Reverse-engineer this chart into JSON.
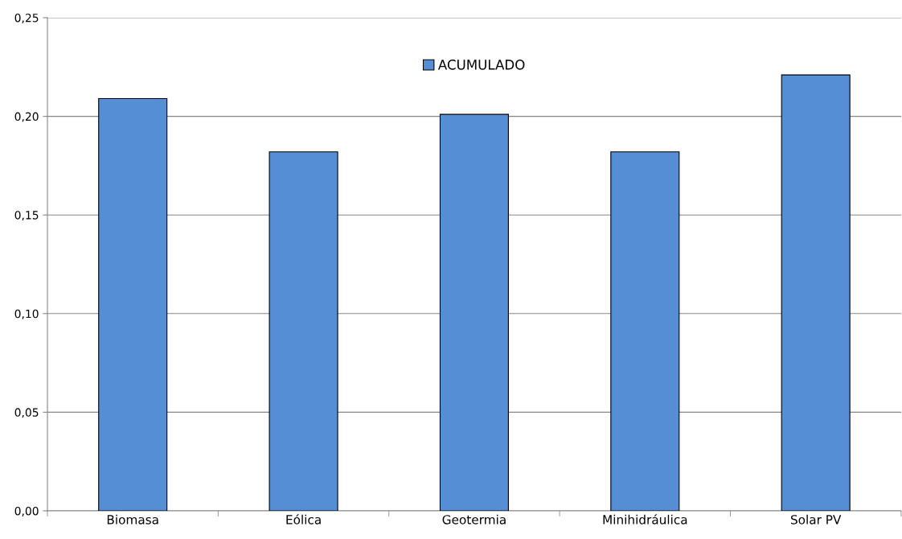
{
  "chart_data": {
    "type": "bar",
    "categories": [
      "Biomasa",
      "Eólica",
      "Geotermia",
      "Minihidráulica",
      "Solar PV"
    ],
    "series": [
      {
        "name": "ACUMULADO",
        "color": "#558ed5",
        "values": [
          0.209,
          0.182,
          0.201,
          0.182,
          0.221
        ]
      }
    ],
    "ylim": [
      0,
      0.25
    ],
    "yticks": [
      {
        "value": 0,
        "label": "0,00"
      },
      {
        "value": 0.05,
        "label": "0,05"
      },
      {
        "value": 0.1,
        "label": "0,10"
      },
      {
        "value": 0.15,
        "label": "0,15"
      },
      {
        "value": 0.2,
        "label": "0,20"
      },
      {
        "value": 0.25,
        "label": "0,25"
      }
    ],
    "grid": "y",
    "legend": "top"
  }
}
